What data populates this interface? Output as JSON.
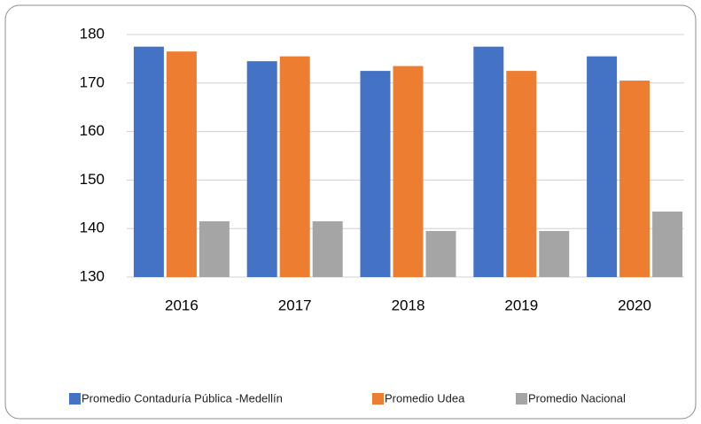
{
  "chart_data": {
    "type": "bar",
    "categories": [
      "2016",
      "2017",
      "2018",
      "2019",
      "2020"
    ],
    "series": [
      {
        "name": "Promedio Contaduría Pública -Medellín",
        "color": "#4472c4",
        "values": [
          177.5,
          174.5,
          172.5,
          177.5,
          175.5
        ]
      },
      {
        "name": "Promedio Udea",
        "color": "#ed7d31",
        "values": [
          176.5,
          175.5,
          173.5,
          172.5,
          170.5
        ]
      },
      {
        "name": "Promedio Nacional",
        "color": "#a5a5a5",
        "values": [
          141.5,
          141.5,
          139.5,
          139.5,
          143.5
        ]
      }
    ],
    "ylim": [
      130,
      180
    ],
    "yticks": [
      130,
      140,
      150,
      160,
      170,
      180
    ],
    "grid": true,
    "legend": "bottom"
  }
}
